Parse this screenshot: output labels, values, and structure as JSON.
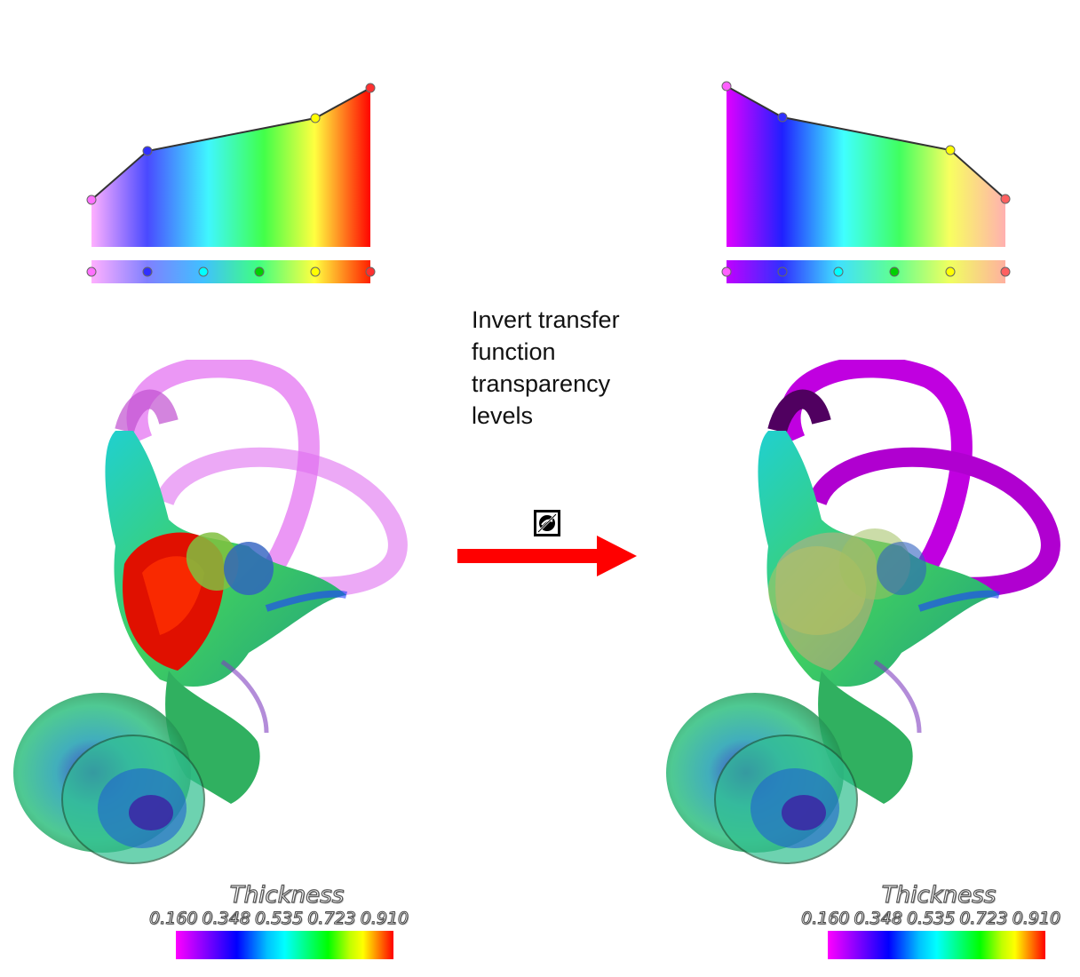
{
  "caption": {
    "lines": [
      "Invert transfer",
      "function",
      "transparency",
      "levels"
    ]
  },
  "toggle_icon": "invert-transparency-icon",
  "arrow_color": "#ff0000",
  "left_panel": {
    "opacity_curve": [
      {
        "position": 0.0,
        "opacity": 0.3,
        "color": "#ff80ff"
      },
      {
        "position": 0.2,
        "opacity": 0.61,
        "color": "#4040ff"
      },
      {
        "position": 0.8,
        "opacity": 0.81,
        "color": "#ffff00"
      },
      {
        "position": 1.0,
        "opacity": 1.0,
        "color": "#ff0000"
      }
    ],
    "legend": {
      "title": "Thickness",
      "ticks": [
        "0.160",
        "0.348",
        "0.535",
        "0.723",
        "0.910"
      ]
    }
  },
  "right_panel": {
    "opacity_curve": [
      {
        "position": 0.0,
        "opacity": 1.0,
        "color": "#ff00ff"
      },
      {
        "position": 0.2,
        "opacity": 0.81,
        "color": "#4040ff"
      },
      {
        "position": 0.8,
        "opacity": 0.61,
        "color": "#ffff00"
      },
      {
        "position": 1.0,
        "opacity": 0.3,
        "color": "#ff8080"
      }
    ],
    "legend": {
      "title": "Thickness",
      "ticks": [
        "0.160",
        "0.348",
        "0.535",
        "0.723",
        "0.910"
      ]
    }
  },
  "color_stops": [
    "#ff80ff",
    "#3030ff",
    "#00ffff",
    "#00e000",
    "#ffff00",
    "#ff0000"
  ]
}
